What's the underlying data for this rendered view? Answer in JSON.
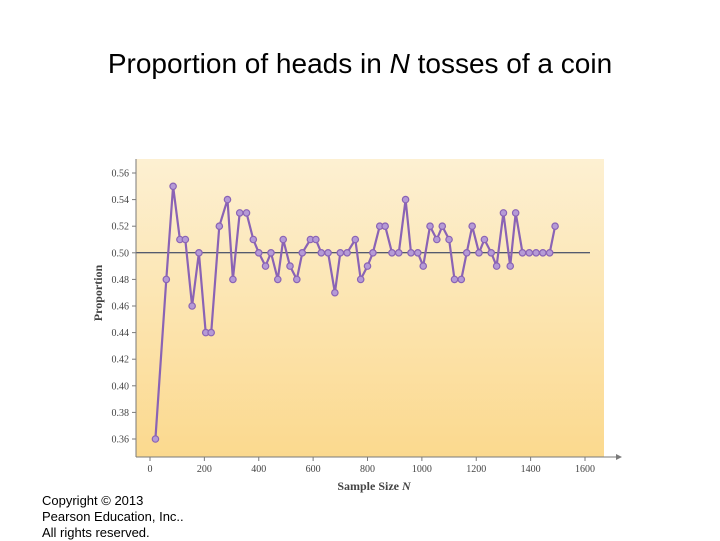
{
  "slide": {
    "title_pre": "Proportion of heads in ",
    "title_var": "N",
    "title_post": " tosses of a coin",
    "copyright_lines": [
      "Copyright © 2013",
      "Pearson Education, Inc..",
      "All rights reserved."
    ]
  },
  "colors": {
    "plot_bg_top": "#fdf0d2",
    "plot_bg_bottom": "#fbd98e",
    "series": "#8a63b5",
    "marker_fill": "#b59ad6",
    "reference_line": "#1d2a55",
    "axis_text": "#444444"
  },
  "chart_data": {
    "type": "line",
    "xlabel_text": "Sample Size",
    "xlabel_var": "N",
    "ylabel": "Proportion",
    "xlim": [
      0,
      1600
    ],
    "ylim": [
      0.36,
      0.56
    ],
    "xticks": [
      0,
      200,
      400,
      600,
      800,
      1000,
      1200,
      1400,
      1600
    ],
    "yticks": [
      0.36,
      0.38,
      0.4,
      0.42,
      0.44,
      0.46,
      0.48,
      0.5,
      0.52,
      0.54,
      0.56
    ],
    "ytick_labels": [
      "0.36",
      "0.38",
      "0.40",
      "0.42",
      "0.44",
      "0.46",
      "0.48",
      "0.50",
      "0.52",
      "0.54",
      "0.56"
    ],
    "reference_y": 0.5,
    "grid": false,
    "series": [
      {
        "x": [
          20,
          60,
          85,
          110,
          130,
          155,
          180,
          205,
          225,
          255,
          285,
          305,
          330,
          355,
          380,
          400,
          425,
          445,
          470,
          490,
          515,
          540,
          560,
          590,
          610,
          630,
          655,
          680,
          700,
          725,
          755,
          775,
          800,
          820,
          845,
          865,
          890,
          915,
          940,
          960,
          985,
          1005,
          1030,
          1055,
          1075,
          1100,
          1120,
          1145,
          1165,
          1185,
          1210,
          1230,
          1255,
          1275,
          1300,
          1325,
          1345,
          1370,
          1395,
          1420,
          1445,
          1470,
          1490
        ],
        "y": [
          0.36,
          0.48,
          0.55,
          0.51,
          0.51,
          0.46,
          0.5,
          0.44,
          0.44,
          0.52,
          0.54,
          0.48,
          0.53,
          0.53,
          0.51,
          0.5,
          0.49,
          0.5,
          0.48,
          0.51,
          0.49,
          0.48,
          0.5,
          0.51,
          0.51,
          0.5,
          0.5,
          0.47,
          0.5,
          0.5,
          0.51,
          0.48,
          0.49,
          0.5,
          0.52,
          0.52,
          0.5,
          0.5,
          0.54,
          0.5,
          0.5,
          0.49,
          0.52,
          0.51,
          0.52,
          0.51,
          0.48,
          0.48,
          0.5,
          0.52,
          0.5,
          0.51,
          0.5,
          0.49,
          0.53,
          0.49,
          0.53,
          0.5,
          0.5,
          0.5,
          0.5,
          0.5,
          0.52
        ]
      }
    ]
  }
}
